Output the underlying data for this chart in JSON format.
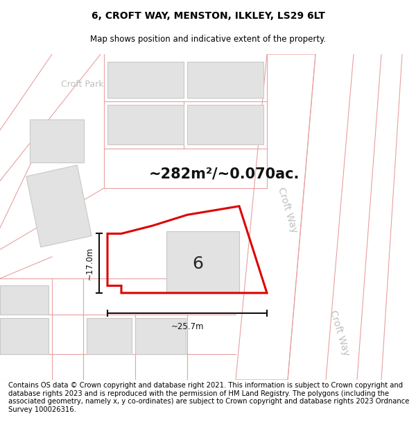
{
  "title_line1": "6, CROFT WAY, MENSTON, ILKLEY, LS29 6LT",
  "title_line2": "Map shows position and indicative extent of the property.",
  "area_text": "~282m²/~0.070ac.",
  "dim_width_text": "~25.7m",
  "dim_height_text": "~17.0m",
  "label_number": "6",
  "label_croft_way1": "Croft Way",
  "label_croft_way2": "Croft Way",
  "label_croft_park": "Croft Park",
  "footer_text": "Contains OS data © Crown copyright and database right 2021. This information is subject to Crown copyright and database rights 2023 and is reproduced with the permission of HM Land Registry. The polygons (including the associated geometry, namely x, y co-ordinates) are subject to Crown copyright and database rights 2023 Ordnance Survey 100026316.",
  "bg_color": "#f2f2f2",
  "building_fill": "#e2e2e2",
  "building_edge": "#c8c8c8",
  "road_line_color": "#e8a0a0",
  "road_fill": "#ffffff",
  "red_polygon_color": "#dd0000",
  "dim_line_color": "#111111",
  "title_fontsize": 10,
  "subtitle_fontsize": 8.5,
  "area_fontsize": 15,
  "footer_fontsize": 7.2,
  "number_fontsize": 18,
  "croft_way_fontsize": 10,
  "croft_park_fontsize": 9
}
